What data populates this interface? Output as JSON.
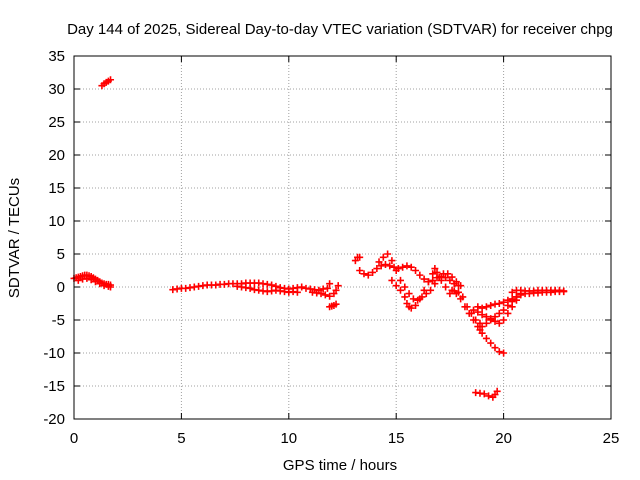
{
  "chart_data": {
    "type": "scatter",
    "title": "Day 144 of 2025, Sidereal Day-to-day VTEC variation (SDTVAR) for receiver chpg",
    "xlabel": "GPS time / hours",
    "ylabel": "SDTVAR / TECUs",
    "xlim": [
      0,
      25
    ],
    "ylim": [
      -20,
      35
    ],
    "xticks": [
      0,
      5,
      10,
      15,
      20,
      25
    ],
    "yticks": [
      -20,
      -15,
      -10,
      -5,
      0,
      5,
      10,
      15,
      20,
      25,
      30,
      35
    ],
    "grid": true,
    "marker": "plus",
    "series": [
      {
        "name": "SDTVAR",
        "color": "#ff0000",
        "points": [
          [
            0.0,
            1.3
          ],
          [
            0.1,
            1.4
          ],
          [
            0.2,
            1.5
          ],
          [
            0.3,
            1.6
          ],
          [
            0.4,
            1.7
          ],
          [
            0.5,
            1.8
          ],
          [
            0.6,
            1.8
          ],
          [
            0.7,
            1.7
          ],
          [
            0.8,
            1.6
          ],
          [
            0.9,
            1.4
          ],
          [
            1.0,
            1.2
          ],
          [
            1.1,
            1.0
          ],
          [
            1.2,
            0.8
          ],
          [
            1.3,
            0.6
          ],
          [
            1.4,
            0.5
          ],
          [
            1.5,
            0.4
          ],
          [
            1.6,
            0.4
          ],
          [
            1.7,
            0.3
          ],
          [
            0.2,
            1.0
          ],
          [
            0.4,
            1.2
          ],
          [
            0.6,
            1.3
          ],
          [
            0.8,
            1.1
          ],
          [
            1.0,
            0.8
          ],
          [
            1.2,
            0.5
          ],
          [
            1.4,
            0.2
          ],
          [
            1.6,
            0.1
          ],
          [
            1.7,
            0.0
          ],
          [
            1.3,
            30.5
          ],
          [
            1.4,
            30.8
          ],
          [
            1.5,
            31.0
          ],
          [
            1.6,
            31.2
          ],
          [
            1.7,
            31.4
          ],
          [
            4.6,
            -0.4
          ],
          [
            4.8,
            -0.3
          ],
          [
            5.0,
            -0.2
          ],
          [
            5.2,
            -0.2
          ],
          [
            5.4,
            -0.1
          ],
          [
            5.6,
            0.0
          ],
          [
            5.8,
            0.1
          ],
          [
            6.0,
            0.2
          ],
          [
            6.2,
            0.3
          ],
          [
            6.4,
            0.3
          ],
          [
            6.6,
            0.3
          ],
          [
            6.8,
            0.4
          ],
          [
            7.0,
            0.4
          ],
          [
            7.2,
            0.5
          ],
          [
            7.4,
            0.5
          ],
          [
            7.6,
            0.5
          ],
          [
            7.8,
            0.5
          ],
          [
            8.0,
            0.6
          ],
          [
            8.2,
            0.6
          ],
          [
            8.4,
            0.6
          ],
          [
            8.6,
            0.6
          ],
          [
            8.8,
            0.5
          ],
          [
            9.0,
            0.4
          ],
          [
            9.2,
            0.3
          ],
          [
            9.4,
            0.1
          ],
          [
            9.6,
            -0.1
          ],
          [
            9.8,
            -0.2
          ],
          [
            10.0,
            -0.3
          ],
          [
            10.2,
            -0.2
          ],
          [
            10.4,
            -0.1
          ],
          [
            10.6,
            0.0
          ],
          [
            10.8,
            -0.2
          ],
          [
            11.0,
            -0.3
          ],
          [
            11.2,
            -0.4
          ],
          [
            11.4,
            -0.5
          ],
          [
            11.6,
            -0.3
          ],
          [
            11.8,
            -0.2
          ],
          [
            11.9,
            0.5
          ],
          [
            7.6,
            0.1
          ],
          [
            7.8,
            0.0
          ],
          [
            8.0,
            -0.1
          ],
          [
            8.2,
            -0.2
          ],
          [
            8.4,
            -0.4
          ],
          [
            8.6,
            -0.5
          ],
          [
            8.8,
            -0.6
          ],
          [
            9.0,
            -0.7
          ],
          [
            9.2,
            -0.6
          ],
          [
            9.4,
            -0.5
          ],
          [
            9.6,
            -0.6
          ],
          [
            9.8,
            -0.7
          ],
          [
            10.0,
            -0.8
          ],
          [
            10.2,
            -0.7
          ],
          [
            10.4,
            -0.8
          ],
          [
            11.1,
            -0.8
          ],
          [
            11.3,
            -0.9
          ],
          [
            11.5,
            -1.0
          ],
          [
            11.7,
            -1.2
          ],
          [
            11.9,
            -1.4
          ],
          [
            11.9,
            -3.0
          ],
          [
            12.0,
            -2.9
          ],
          [
            12.1,
            -2.8
          ],
          [
            12.2,
            -2.6
          ],
          [
            12.1,
            -1.0
          ],
          [
            12.2,
            -0.5
          ],
          [
            12.3,
            0.2
          ],
          [
            13.1,
            4.0
          ],
          [
            13.2,
            4.5
          ],
          [
            13.3,
            4.5
          ],
          [
            13.3,
            2.5
          ],
          [
            13.5,
            2.0
          ],
          [
            13.7,
            1.8
          ],
          [
            13.9,
            2.2
          ],
          [
            14.1,
            2.8
          ],
          [
            14.3,
            3.2
          ],
          [
            14.5,
            3.4
          ],
          [
            14.7,
            3.2
          ],
          [
            14.9,
            3.0
          ],
          [
            15.1,
            2.8
          ],
          [
            15.3,
            3.0
          ],
          [
            15.5,
            3.2
          ],
          [
            15.7,
            3.0
          ],
          [
            15.9,
            2.5
          ],
          [
            16.1,
            1.8
          ],
          [
            16.3,
            1.2
          ],
          [
            16.5,
            0.8
          ],
          [
            16.7,
            1.0
          ],
          [
            16.9,
            1.4
          ],
          [
            17.1,
            1.6
          ],
          [
            17.3,
            1.4
          ],
          [
            17.5,
            1.0
          ],
          [
            17.7,
            0.5
          ],
          [
            17.9,
            0.2
          ],
          [
            14.2,
            3.8
          ],
          [
            14.4,
            4.5
          ],
          [
            14.6,
            5.0
          ],
          [
            14.8,
            4.0
          ],
          [
            15.0,
            2.5
          ],
          [
            15.2,
            1.0
          ],
          [
            15.4,
            0.0
          ],
          [
            15.6,
            -1.0
          ],
          [
            15.8,
            -1.8
          ],
          [
            16.0,
            -2.0
          ],
          [
            16.2,
            -1.5
          ],
          [
            16.4,
            -1.0
          ],
          [
            16.6,
            -0.5
          ],
          [
            16.8,
            0.5
          ],
          [
            17.0,
            1.5
          ],
          [
            17.2,
            2.0
          ],
          [
            17.4,
            2.0
          ],
          [
            17.6,
            1.5
          ],
          [
            17.8,
            0.8
          ],
          [
            18.0,
            0.2
          ],
          [
            14.8,
            1.0
          ],
          [
            15.0,
            0.2
          ],
          [
            15.2,
            -0.5
          ],
          [
            15.4,
            -1.5
          ],
          [
            15.5,
            -2.5
          ],
          [
            15.6,
            -3.0
          ],
          [
            15.7,
            -3.2
          ],
          [
            15.9,
            -2.8
          ],
          [
            16.1,
            -1.8
          ],
          [
            16.3,
            -0.5
          ],
          [
            16.5,
            0.8
          ],
          [
            16.7,
            2.0
          ],
          [
            16.8,
            2.8
          ],
          [
            16.9,
            2.2
          ],
          [
            17.1,
            1.0
          ],
          [
            17.3,
            0.0
          ],
          [
            17.5,
            -1.0
          ],
          [
            17.7,
            -0.6
          ],
          [
            17.9,
            -0.8
          ],
          [
            18.1,
            -1.5
          ],
          [
            18.3,
            -3.0
          ],
          [
            18.5,
            -4.0
          ],
          [
            18.7,
            -5.0
          ],
          [
            18.9,
            -5.5
          ],
          [
            17.6,
            -0.5
          ],
          [
            17.8,
            -1.0
          ],
          [
            18.0,
            -1.8
          ],
          [
            18.2,
            -3.0
          ],
          [
            18.4,
            -4.0
          ],
          [
            18.6,
            -5.0
          ],
          [
            18.8,
            -6.0
          ],
          [
            18.9,
            -6.5
          ],
          [
            19.0,
            -6.0
          ],
          [
            19.2,
            -5.5
          ],
          [
            19.4,
            -5.0
          ],
          [
            19.6,
            -4.5
          ],
          [
            19.8,
            -4.0
          ],
          [
            20.0,
            -3.5
          ],
          [
            20.2,
            -2.8
          ],
          [
            20.4,
            -2.2
          ],
          [
            20.6,
            -1.5
          ],
          [
            20.8,
            -1.0
          ],
          [
            18.6,
            -3.5
          ],
          [
            18.8,
            -3.8
          ],
          [
            19.0,
            -4.2
          ],
          [
            19.2,
            -4.5
          ],
          [
            19.4,
            -4.8
          ],
          [
            19.6,
            -5.2
          ],
          [
            19.8,
            -5.5
          ],
          [
            20.0,
            -5.0
          ],
          [
            20.2,
            -4.0
          ],
          [
            20.4,
            -3.0
          ],
          [
            20.6,
            -2.0
          ],
          [
            18.8,
            -3.0
          ],
          [
            19.0,
            -3.2
          ],
          [
            19.2,
            -3.0
          ],
          [
            19.4,
            -2.8
          ],
          [
            19.6,
            -2.6
          ],
          [
            19.8,
            -2.5
          ],
          [
            20.0,
            -2.3
          ],
          [
            20.2,
            -2.0
          ],
          [
            20.4,
            -1.8
          ],
          [
            20.6,
            -1.5
          ],
          [
            20.8,
            -1.2
          ],
          [
            21.0,
            -1.0
          ],
          [
            21.2,
            -1.0
          ],
          [
            21.4,
            -0.9
          ],
          [
            21.6,
            -0.9
          ],
          [
            21.8,
            -0.8
          ],
          [
            22.0,
            -0.8
          ],
          [
            22.2,
            -0.8
          ],
          [
            22.4,
            -0.7
          ],
          [
            22.6,
            -0.7
          ],
          [
            22.8,
            -0.7
          ],
          [
            20.4,
            -0.8
          ],
          [
            20.6,
            -0.5
          ],
          [
            20.8,
            -0.5
          ],
          [
            21.0,
            -0.6
          ],
          [
            21.2,
            -0.6
          ],
          [
            21.4,
            -0.6
          ],
          [
            21.6,
            -0.5
          ],
          [
            21.8,
            -0.5
          ],
          [
            22.0,
            -0.5
          ],
          [
            22.2,
            -0.5
          ],
          [
            22.4,
            -0.5
          ],
          [
            22.6,
            -0.5
          ],
          [
            22.8,
            -0.6
          ],
          [
            19.0,
            -7.0
          ],
          [
            19.2,
            -7.8
          ],
          [
            19.4,
            -8.5
          ],
          [
            19.6,
            -9.2
          ],
          [
            19.8,
            -9.8
          ],
          [
            20.0,
            -10.0
          ],
          [
            18.7,
            -16.0
          ],
          [
            18.9,
            -16.1
          ],
          [
            19.1,
            -16.2
          ],
          [
            19.3,
            -16.5
          ],
          [
            19.5,
            -16.7
          ],
          [
            19.6,
            -16.3
          ],
          [
            19.7,
            -15.8
          ]
        ]
      }
    ]
  }
}
